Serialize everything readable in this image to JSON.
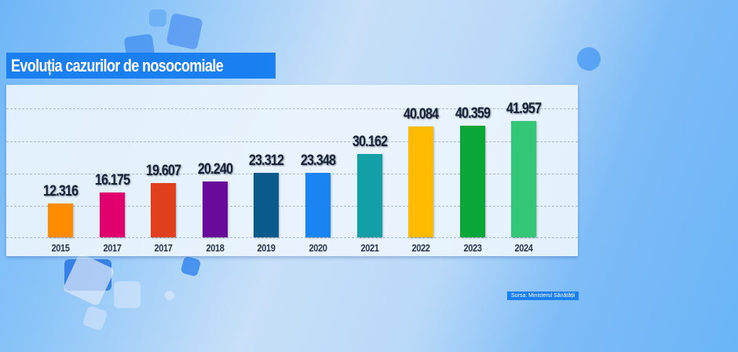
{
  "title": "Evoluția cazurilor de nosocomiale",
  "source": "Sursa: Ministerul Sănătății",
  "colors": {
    "title_bg": "#1a7ff0",
    "panel_bg": "#ebf4fd",
    "value_text": "#16233a"
  },
  "bars": [
    {
      "year": "2015",
      "label": "12.316",
      "value": 12316,
      "color": "#ff8c00"
    },
    {
      "year": "2017",
      "label": "16.175",
      "value": 16175,
      "color": "#e0006e"
    },
    {
      "year": "2017",
      "label": "19.607",
      "value": 19607,
      "color": "#e0401e"
    },
    {
      "year": "2018",
      "label": "20.240",
      "value": 20240,
      "color": "#6a0a9a"
    },
    {
      "year": "2019",
      "label": "23.312",
      "value": 23312,
      "color": "#0a5a8c"
    },
    {
      "year": "2020",
      "label": "23.348",
      "value": 23348,
      "color": "#1a84f2"
    },
    {
      "year": "2021",
      "label": "30.162",
      "value": 30162,
      "color": "#12a0a6"
    },
    {
      "year": "2022",
      "label": "40.084",
      "value": 40084,
      "color": "#ffbb00"
    },
    {
      "year": "2023",
      "label": "40.359",
      "value": 40359,
      "color": "#0aa637"
    },
    {
      "year": "2024",
      "label": "41.957",
      "value": 41957,
      "color": "#34c778"
    }
  ],
  "chart_data": {
    "type": "bar",
    "title": "Evoluția cazurilor de nosocomiale",
    "categories": [
      "2015",
      "2017",
      "2017",
      "2018",
      "2019",
      "2020",
      "2021",
      "2022",
      "2023",
      "2024"
    ],
    "values": [
      12316,
      16175,
      19607,
      20240,
      23312,
      23348,
      30162,
      40084,
      40359,
      41957
    ],
    "value_labels": [
      "12.316",
      "16.175",
      "19.607",
      "20.240",
      "23.312",
      "23.348",
      "30.162",
      "40.084",
      "40.359",
      "41.957"
    ],
    "xlabel": "",
    "ylabel": "",
    "grid": true,
    "legend": null,
    "annotations": [
      "Sursa: Ministerul Sănătății"
    ]
  }
}
